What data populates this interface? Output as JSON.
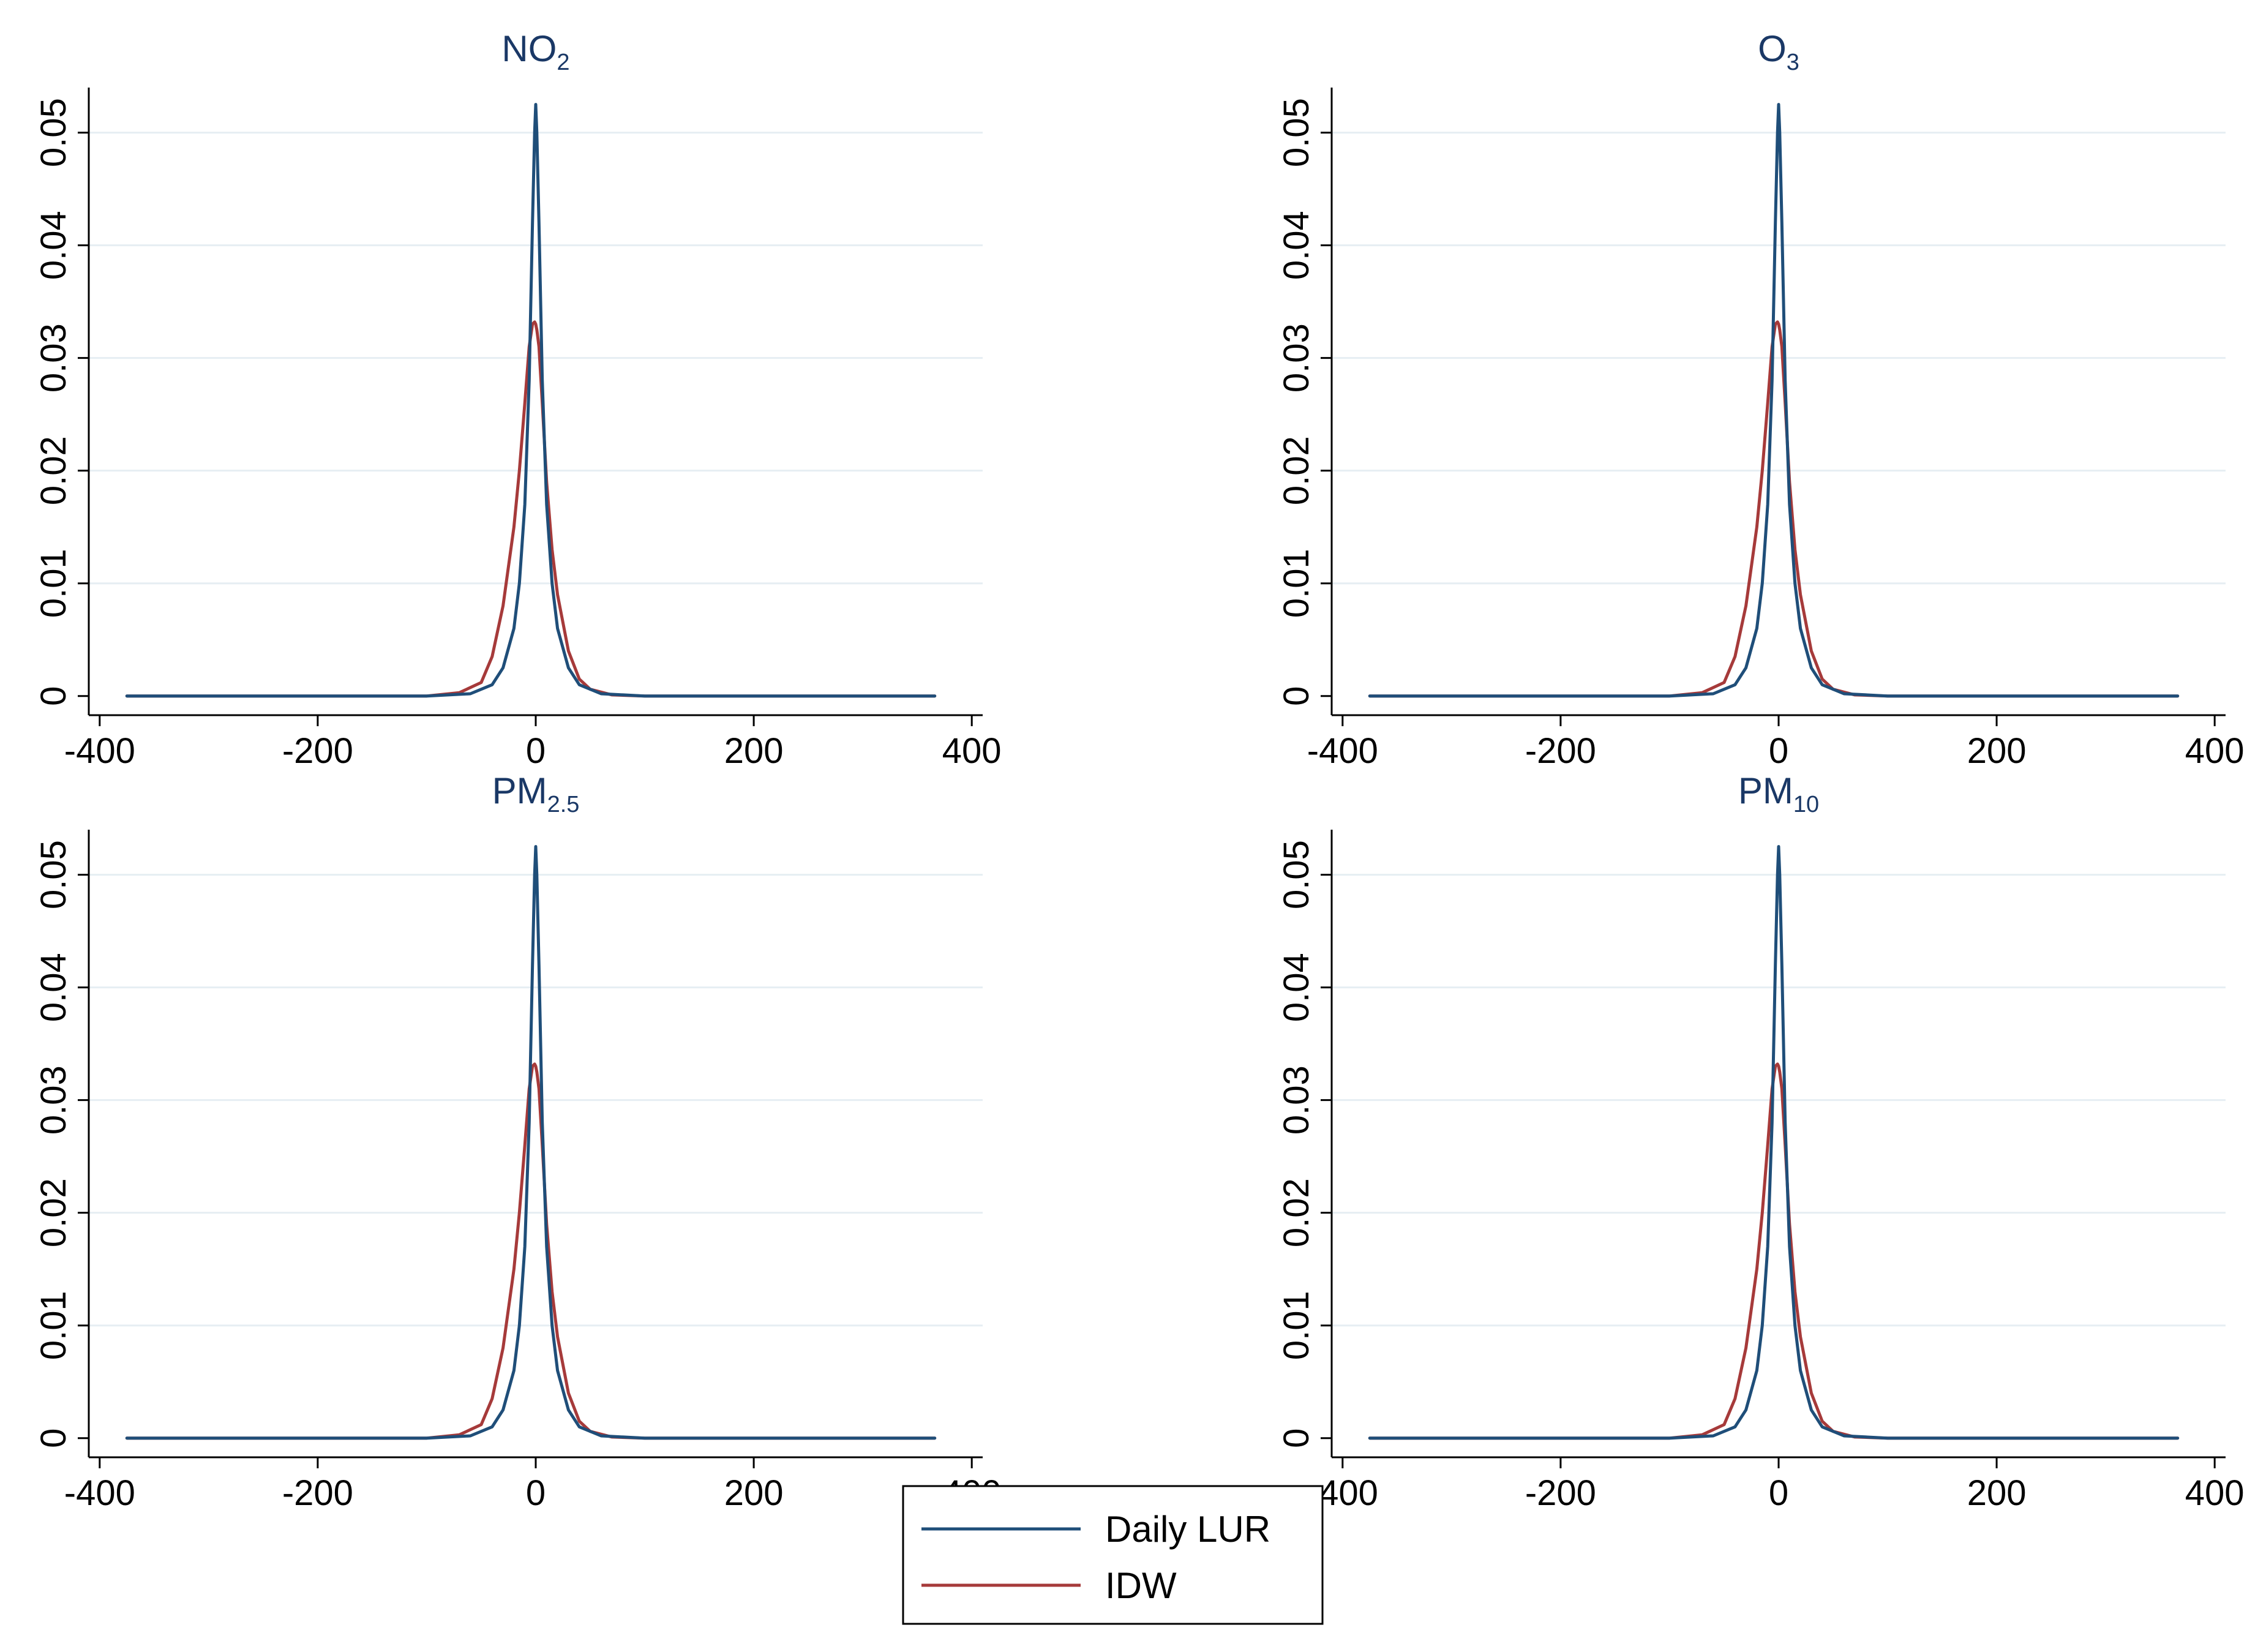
{
  "chart_data": {
    "type": "line",
    "layout": "2x2 grid of panels with a shared legend",
    "x_ticks": [
      -400,
      -200,
      0,
      200,
      400
    ],
    "x_tick_labels": [
      "-400",
      "-200",
      "0",
      "200",
      "400"
    ],
    "y_ticks": [
      0,
      0.01,
      0.02,
      0.03,
      0.04,
      0.05
    ],
    "y_tick_labels": [
      "0",
      "0.01",
      "0.02",
      "0.03",
      "0.04",
      "0.05"
    ],
    "xlim": [
      -410,
      410
    ],
    "ylim": [
      -0.0017,
      0.054
    ],
    "grid": "horizontal",
    "legend": {
      "placement": "bottom-center",
      "entries": [
        {
          "label": "Daily LUR",
          "color": "#1f4e79"
        },
        {
          "label": "IDW",
          "color": "#a63a3a"
        }
      ]
    },
    "colors": {
      "axis": "#000000",
      "grid": "#e6eef3",
      "title": "#1a3866",
      "daily_lur": "#1f4e79",
      "idw": "#a63a3a"
    },
    "panels": [
      {
        "title_main": "NO",
        "title_sub": "2",
        "series": [
          {
            "name": "Daily LUR",
            "x": [
              -375,
              -100,
              -60,
              -40,
              -30,
              -20,
              -15,
              -10,
              -6,
              -3,
              -1,
              0,
              1,
              3,
              6,
              10,
              15,
              20,
              30,
              40,
              60,
              100,
              366
            ],
            "y": [
              0,
              0,
              0.0002,
              0.001,
              0.0025,
              0.006,
              0.01,
              0.017,
              0.028,
              0.042,
              0.05,
              0.0525,
              0.05,
              0.042,
              0.028,
              0.017,
              0.01,
              0.006,
              0.0025,
              0.001,
              0.0002,
              0,
              0
            ]
          },
          {
            "name": "IDW",
            "x": [
              -375,
              -100,
              -70,
              -50,
              -40,
              -30,
              -20,
              -15,
              -10,
              -6,
              -3,
              -1,
              0,
              1,
              3,
              6,
              10,
              15,
              20,
              30,
              40,
              50,
              70,
              100,
              366
            ],
            "y": [
              0,
              0,
              0.0003,
              0.0012,
              0.0035,
              0.008,
              0.015,
              0.02,
              0.026,
              0.031,
              0.033,
              0.0332,
              0.033,
              0.0325,
              0.031,
              0.026,
              0.019,
              0.013,
              0.009,
              0.004,
              0.0015,
              0.0006,
              0.0001,
              0,
              0
            ]
          }
        ]
      },
      {
        "title_main": "O",
        "title_sub": "3",
        "series": [
          {
            "name": "Daily LUR",
            "x": [
              -375,
              -100,
              -60,
              -40,
              -30,
              -20,
              -15,
              -10,
              -6,
              -3,
              -1,
              0,
              1,
              3,
              6,
              10,
              15,
              20,
              30,
              40,
              60,
              100,
              366
            ],
            "y": [
              0,
              0,
              0.0002,
              0.001,
              0.0025,
              0.006,
              0.01,
              0.017,
              0.028,
              0.042,
              0.05,
              0.0525,
              0.05,
              0.042,
              0.028,
              0.017,
              0.01,
              0.006,
              0.0025,
              0.001,
              0.0002,
              0,
              0
            ]
          },
          {
            "name": "IDW",
            "x": [
              -375,
              -100,
              -70,
              -50,
              -40,
              -30,
              -20,
              -15,
              -10,
              -6,
              -3,
              -1,
              0,
              1,
              3,
              6,
              10,
              15,
              20,
              30,
              40,
              50,
              70,
              100,
              366
            ],
            "y": [
              0,
              0,
              0.0003,
              0.0012,
              0.0035,
              0.008,
              0.015,
              0.02,
              0.026,
              0.031,
              0.033,
              0.0332,
              0.033,
              0.0325,
              0.031,
              0.026,
              0.019,
              0.013,
              0.009,
              0.004,
              0.0015,
              0.0006,
              0.0001,
              0,
              0
            ]
          }
        ]
      },
      {
        "title_main": "PM",
        "title_sub": "2.5",
        "series": [
          {
            "name": "Daily LUR",
            "x": [
              -375,
              -100,
              -60,
              -40,
              -30,
              -20,
              -15,
              -10,
              -6,
              -3,
              -1,
              0,
              1,
              3,
              6,
              10,
              15,
              20,
              30,
              40,
              60,
              100,
              366
            ],
            "y": [
              0,
              0,
              0.0002,
              0.001,
              0.0025,
              0.006,
              0.01,
              0.017,
              0.028,
              0.042,
              0.05,
              0.0525,
              0.05,
              0.042,
              0.028,
              0.017,
              0.01,
              0.006,
              0.0025,
              0.001,
              0.0002,
              0,
              0
            ]
          },
          {
            "name": "IDW",
            "x": [
              -375,
              -100,
              -70,
              -50,
              -40,
              -30,
              -20,
              -15,
              -10,
              -6,
              -3,
              -1,
              0,
              1,
              3,
              6,
              10,
              15,
              20,
              30,
              40,
              50,
              70,
              100,
              366
            ],
            "y": [
              0,
              0,
              0.0003,
              0.0012,
              0.0035,
              0.008,
              0.015,
              0.02,
              0.026,
              0.031,
              0.033,
              0.0332,
              0.033,
              0.0325,
              0.031,
              0.026,
              0.019,
              0.013,
              0.009,
              0.004,
              0.0015,
              0.0006,
              0.0001,
              0,
              0
            ]
          }
        ]
      },
      {
        "title_main": "PM",
        "title_sub": "10",
        "series": [
          {
            "name": "Daily LUR",
            "x": [
              -375,
              -100,
              -60,
              -40,
              -30,
              -20,
              -15,
              -10,
              -6,
              -3,
              -1,
              0,
              1,
              3,
              6,
              10,
              15,
              20,
              30,
              40,
              60,
              100,
              366
            ],
            "y": [
              0,
              0,
              0.0002,
              0.001,
              0.0025,
              0.006,
              0.01,
              0.017,
              0.028,
              0.042,
              0.05,
              0.0525,
              0.05,
              0.042,
              0.028,
              0.017,
              0.01,
              0.006,
              0.0025,
              0.001,
              0.0002,
              0,
              0
            ]
          },
          {
            "name": "IDW",
            "x": [
              -375,
              -100,
              -70,
              -50,
              -40,
              -30,
              -20,
              -15,
              -10,
              -6,
              -3,
              -1,
              0,
              1,
              3,
              6,
              10,
              15,
              20,
              30,
              40,
              50,
              70,
              100,
              366
            ],
            "y": [
              0,
              0,
              0.0003,
              0.0012,
              0.0035,
              0.008,
              0.015,
              0.02,
              0.026,
              0.031,
              0.033,
              0.0332,
              0.033,
              0.0325,
              0.031,
              0.026,
              0.019,
              0.013,
              0.009,
              0.004,
              0.0015,
              0.0006,
              0.0001,
              0,
              0
            ]
          }
        ]
      }
    ]
  }
}
